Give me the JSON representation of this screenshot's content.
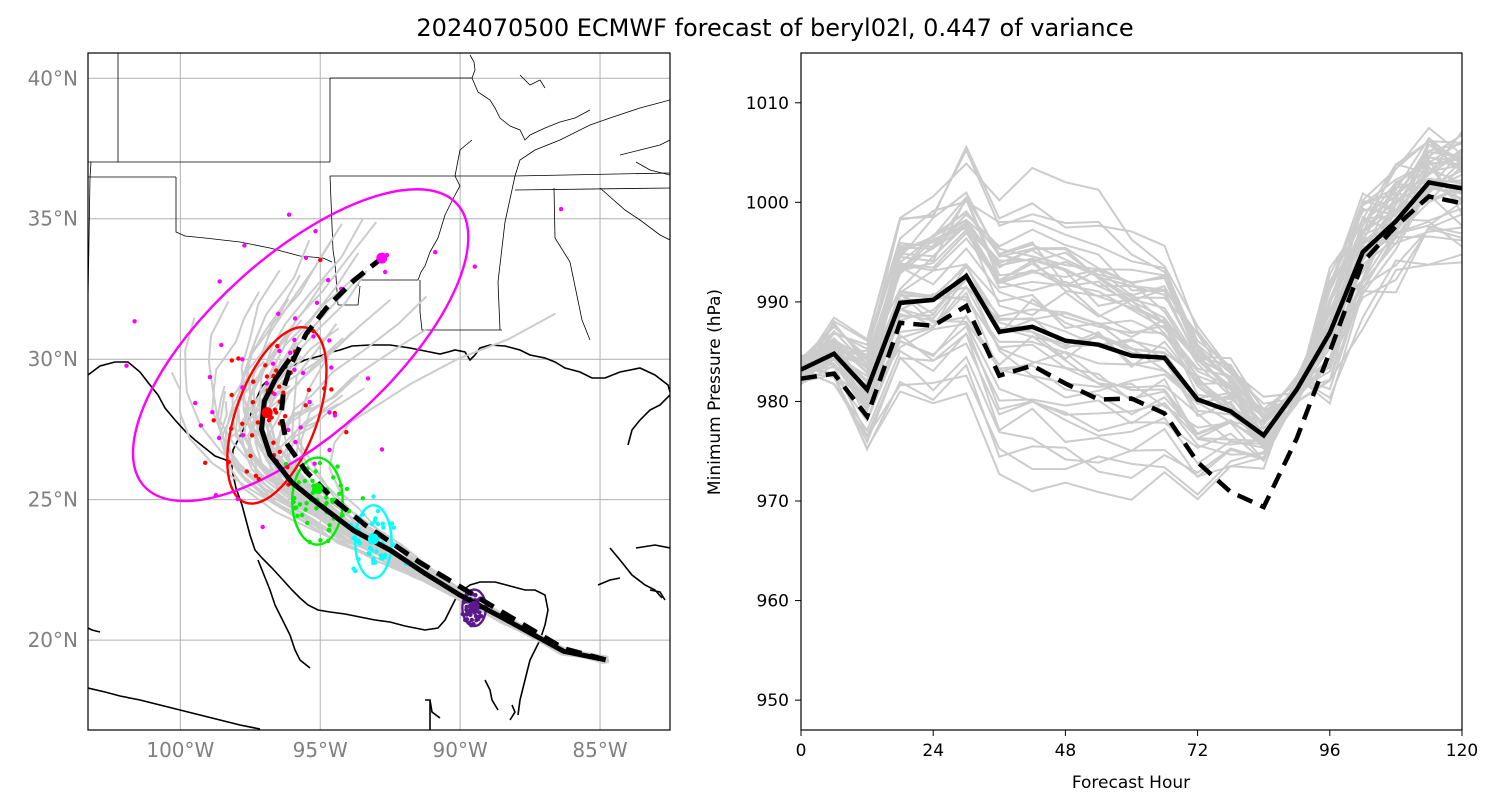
{
  "figure": {
    "title": "2024070500 ECMWF forecast of beryl02l, 0.447 of variance"
  },
  "chart_data": [
    {
      "type": "scatter",
      "subtype": "track-map",
      "lon_range": [
        -103.3,
        -82.5
      ],
      "lat_range": [
        16.8,
        40.9
      ],
      "x_ticks": [
        -100,
        -95,
        -90,
        -85
      ],
      "x_tick_labels": [
        "100°W",
        "95°W",
        "90°W",
        "85°W"
      ],
      "y_ticks": [
        20,
        25,
        30,
        35,
        40
      ],
      "y_tick_labels": [
        "20°N",
        "25°N",
        "30°N",
        "35°N",
        "40°N"
      ],
      "grid": true,
      "colors": {
        "ensemble": "#cccccc",
        "hour24": "#5a1a8c",
        "hour48": "#00ffff",
        "hour72": "#00ee00",
        "hour96": "#ff0000",
        "hour120": "#ff00ff"
      },
      "mean_track": [
        [
          -84.8,
          19.3
        ],
        [
          -86.3,
          19.6
        ],
        [
          -88.5,
          20.8
        ],
        [
          -90.0,
          21.6
        ],
        [
          -91.3,
          22.4
        ],
        [
          -92.5,
          23.2
        ],
        [
          -93.8,
          23.9
        ],
        [
          -95.0,
          24.8
        ],
        [
          -96.0,
          25.6
        ],
        [
          -96.8,
          26.6
        ],
        [
          -97.1,
          27.5
        ],
        [
          -97.0,
          28.5
        ],
        [
          -96.6,
          29.3
        ],
        [
          -96.1,
          30.0
        ]
      ],
      "principal_track": [
        [
          -84.8,
          19.3
        ],
        [
          -86.3,
          19.7
        ],
        [
          -88.5,
          21.0
        ],
        [
          -90.0,
          21.9
        ],
        [
          -91.5,
          22.8
        ],
        [
          -92.5,
          23.5
        ],
        [
          -93.4,
          24.1
        ],
        [
          -94.5,
          25.0
        ],
        [
          -95.5,
          26.0
        ],
        [
          -96.2,
          27.0
        ],
        [
          -96.4,
          28.0
        ],
        [
          -96.3,
          29.0
        ],
        [
          -96.0,
          29.9
        ],
        [
          -95.5,
          30.9
        ],
        [
          -94.8,
          31.8
        ],
        [
          -93.8,
          32.8
        ],
        [
          -92.8,
          33.6
        ]
      ],
      "ellipses": [
        {
          "hour": 24,
          "center": [
            -89.5,
            21.15
          ],
          "rx_deg": 0.42,
          "ry_deg": 0.65,
          "angle": 0
        },
        {
          "hour": 48,
          "center": [
            -93.1,
            23.5
          ],
          "rx_deg": 0.65,
          "ry_deg": 1.3,
          "angle": 0
        },
        {
          "hour": 72,
          "center": [
            -95.1,
            24.95
          ],
          "rx_deg": 0.9,
          "ry_deg": 1.55,
          "angle": 0
        },
        {
          "hour": 96,
          "center": [
            -96.55,
            28.0
          ],
          "rx_deg": 1.45,
          "ry_deg": 3.3,
          "angle": 20
        },
        {
          "hour": 120,
          "center": [
            -95.7,
            30.5
          ],
          "rx_deg": 3.2,
          "ry_deg": 7.5,
          "angle": 48
        }
      ],
      "markers": [
        {
          "hour": 24,
          "lon": -89.5,
          "lat": 21.2
        },
        {
          "hour": 48,
          "lon": -93.1,
          "lat": 23.6
        },
        {
          "hour": 72,
          "lon": -95.1,
          "lat": 25.4
        },
        {
          "hour": 96,
          "lon": -96.9,
          "lat": 28.1
        },
        {
          "hour": 120,
          "lon": -92.8,
          "lat": 33.6
        }
      ]
    },
    {
      "type": "line",
      "xlabel": "Forecast Hour",
      "ylabel": "Minimum Pressure (hPa)",
      "xlim": [
        0,
        120
      ],
      "ylim": [
        947,
        1015
      ],
      "x_ticks": [
        0,
        24,
        48,
        72,
        96,
        120
      ],
      "y_ticks": [
        950,
        960,
        970,
        980,
        990,
        1000,
        1010
      ],
      "colors": {
        "ensemble": "#cccccc",
        "mean": "#000000",
        "principal": "#000000"
      },
      "x": [
        0,
        6,
        12,
        18,
        24,
        30,
        36,
        42,
        48,
        54,
        60,
        66,
        72,
        78,
        84,
        90,
        96,
        102,
        108,
        114,
        120
      ],
      "series": [
        {
          "style": "solid",
          "values": [
            983.2,
            984.8,
            981.2,
            989.9,
            990.2,
            992.6,
            987.0,
            987.5,
            986.1,
            985.7,
            984.6,
            984.4,
            980.2,
            979.0,
            976.6,
            981.2,
            986.9,
            995.0,
            998.1,
            1002.0,
            1001.4
          ]
        },
        {
          "style": "dashed",
          "values": [
            982.3,
            982.8,
            978.5,
            987.9,
            987.6,
            989.6,
            982.6,
            983.6,
            981.8,
            980.2,
            980.3,
            978.8,
            973.9,
            970.9,
            969.4,
            976.3,
            985.0,
            994.0,
            997.6,
            1000.6,
            999.9
          ]
        }
      ]
    }
  ]
}
